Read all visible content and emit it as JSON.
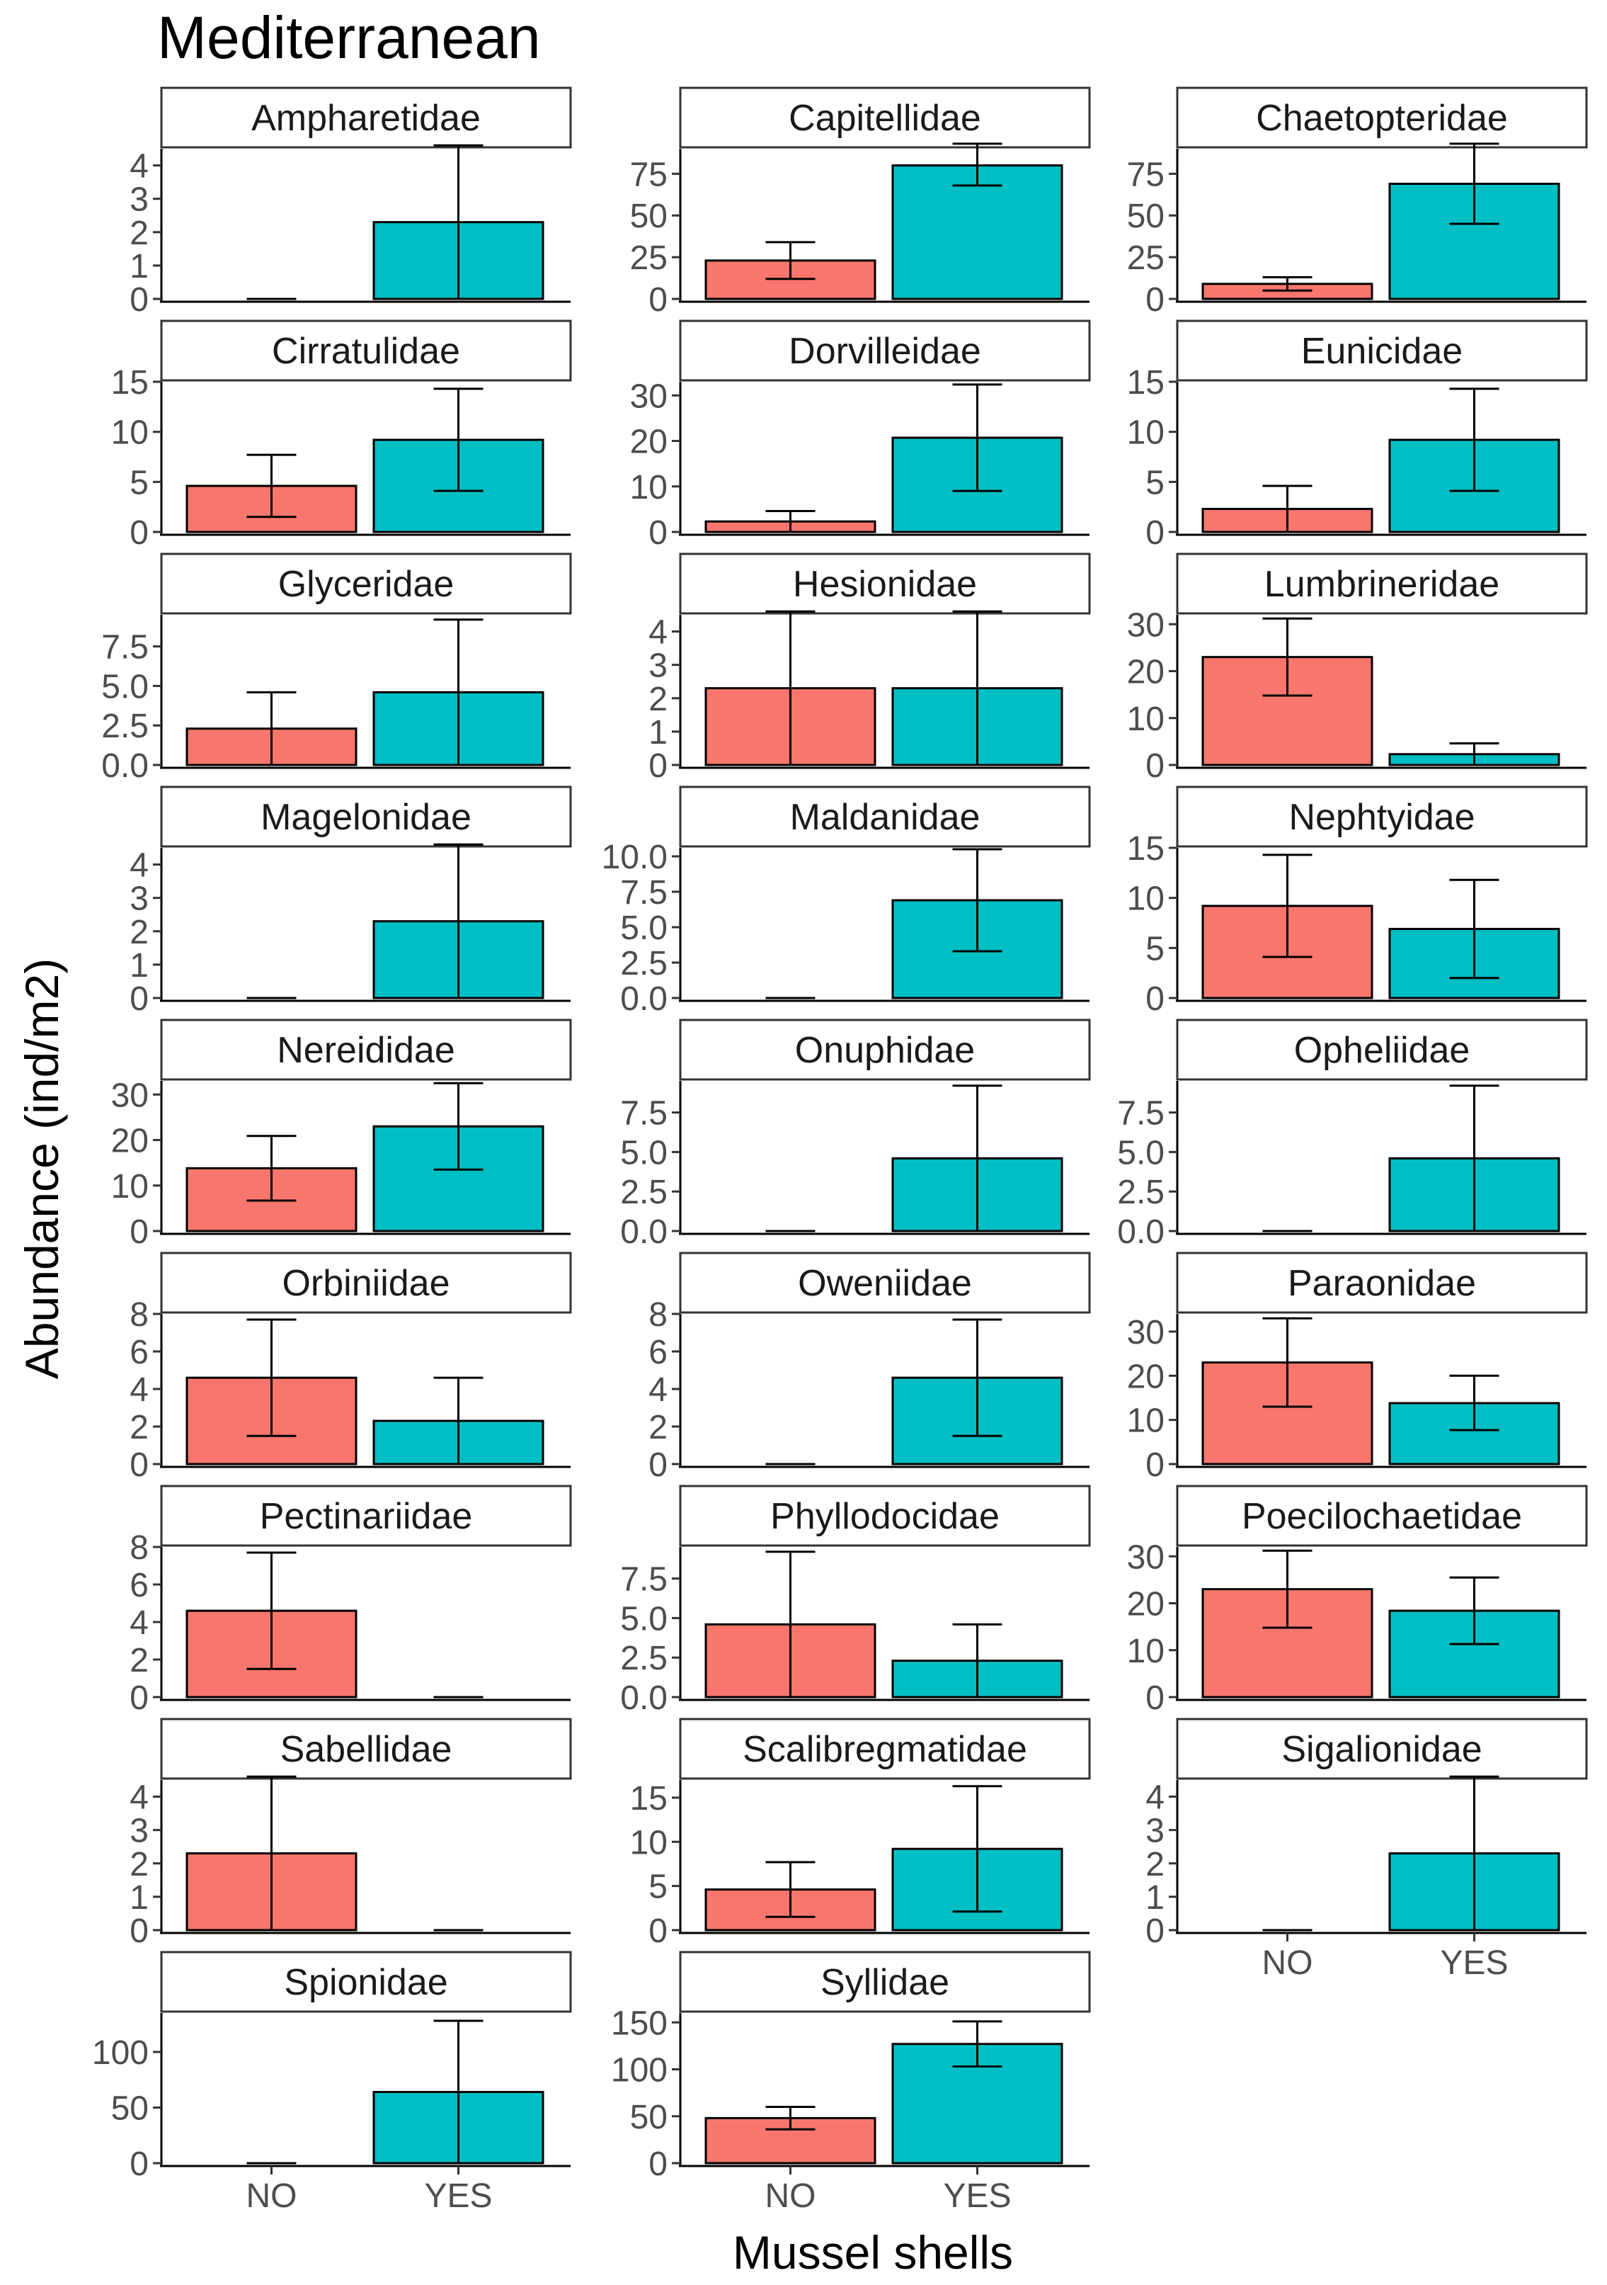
{
  "chart_data": {
    "type": "bar",
    "title": "Mediterranean",
    "xlabel": "Mussel shells",
    "ylabel": "Abundance (ind/m2)",
    "categories": [
      "NO",
      "YES"
    ],
    "colors": {
      "NO": "#F8766D",
      "YES": "#00BFC4"
    },
    "panels": [
      {
        "name": "Ampharetidae",
        "ymax": 4.5,
        "ticks": [
          0,
          1,
          2,
          3,
          4
        ],
        "values": [
          0,
          2.3
        ],
        "lower": [
          0,
          0
        ],
        "upper": [
          0,
          4.6
        ]
      },
      {
        "name": "Capitellidae",
        "ymax": 90,
        "ticks": [
          0,
          25,
          50,
          75
        ],
        "values": [
          23,
          80
        ],
        "lower": [
          12,
          68
        ],
        "upper": [
          34,
          93
        ]
      },
      {
        "name": "Chaetopteridae",
        "ymax": 90,
        "ticks": [
          0,
          25,
          50,
          75
        ],
        "values": [
          9,
          69
        ],
        "lower": [
          5,
          45
        ],
        "upper": [
          13,
          93
        ]
      },
      {
        "name": "Cirratulidae",
        "ymax": 15,
        "ticks": [
          0,
          5,
          10,
          15
        ],
        "values": [
          4.6,
          9.2
        ],
        "lower": [
          1.5,
          4.1
        ],
        "upper": [
          7.7,
          14.3
        ]
      },
      {
        "name": "Dorvilleidae",
        "ymax": 33,
        "ticks": [
          0,
          10,
          20,
          30
        ],
        "values": [
          2.3,
          20.7
        ],
        "lower": [
          0,
          9
        ],
        "upper": [
          4.6,
          32.4
        ]
      },
      {
        "name": "Eunicidae",
        "ymax": 15,
        "ticks": [
          0,
          5,
          10,
          15
        ],
        "values": [
          2.3,
          9.2
        ],
        "lower": [
          0,
          4.1
        ],
        "upper": [
          4.6,
          14.3
        ]
      },
      {
        "name": "Glyceridae",
        "ymax": 9.5,
        "ticks": [
          "0.0",
          "2.5",
          "5.0",
          "7.5"
        ],
        "values": [
          2.3,
          4.6
        ],
        "lower": [
          0,
          0
        ],
        "upper": [
          4.6,
          9.2
        ]
      },
      {
        "name": "Hesionidae",
        "ymax": 4.5,
        "ticks": [
          0,
          1,
          2,
          3,
          4
        ],
        "values": [
          2.3,
          2.3
        ],
        "lower": [
          0,
          0
        ],
        "upper": [
          4.6,
          4.6
        ]
      },
      {
        "name": "Lumbrineridae",
        "ymax": 32,
        "ticks": [
          0,
          10,
          20,
          30
        ],
        "values": [
          23,
          2.3
        ],
        "lower": [
          14.8,
          0
        ],
        "upper": [
          31.2,
          4.6
        ]
      },
      {
        "name": "Magelonidae",
        "ymax": 4.5,
        "ticks": [
          0,
          1,
          2,
          3,
          4
        ],
        "values": [
          0,
          2.3
        ],
        "lower": [
          0,
          0
        ],
        "upper": [
          0,
          4.6
        ]
      },
      {
        "name": "Maldanidae",
        "ymax": 10.6,
        "ticks": [
          "0.0",
          "2.5",
          "5.0",
          "7.5",
          "10.0"
        ],
        "values": [
          0,
          6.9
        ],
        "lower": [
          0,
          3.3
        ],
        "upper": [
          0,
          10.5
        ]
      },
      {
        "name": "Nephtyidae",
        "ymax": 15,
        "ticks": [
          0,
          5,
          10,
          15
        ],
        "values": [
          9.2,
          6.9
        ],
        "lower": [
          4.1,
          2
        ],
        "upper": [
          14.3,
          11.8
        ]
      },
      {
        "name": "Nereididae",
        "ymax": 33,
        "ticks": [
          0,
          10,
          20,
          30
        ],
        "values": [
          13.8,
          23
        ],
        "lower": [
          6.7,
          13.5
        ],
        "upper": [
          20.9,
          32.5
        ]
      },
      {
        "name": "Onuphidae",
        "ymax": 9.5,
        "ticks": [
          "0.0",
          "2.5",
          "5.0",
          "7.5"
        ],
        "values": [
          0,
          4.6
        ],
        "lower": [
          0,
          0
        ],
        "upper": [
          0,
          9.2
        ]
      },
      {
        "name": "Opheliidae",
        "ymax": 9.5,
        "ticks": [
          "0.0",
          "2.5",
          "5.0",
          "7.5"
        ],
        "values": [
          0,
          4.6
        ],
        "lower": [
          0,
          0
        ],
        "upper": [
          0,
          9.2
        ]
      },
      {
        "name": "Orbiniidae",
        "ymax": 8,
        "ticks": [
          0,
          2,
          4,
          6,
          8
        ],
        "values": [
          4.6,
          2.3
        ],
        "lower": [
          1.5,
          0
        ],
        "upper": [
          7.7,
          4.6
        ]
      },
      {
        "name": "Oweniidae",
        "ymax": 8,
        "ticks": [
          0,
          2,
          4,
          6,
          8
        ],
        "values": [
          0,
          4.6
        ],
        "lower": [
          0,
          1.5
        ],
        "upper": [
          0,
          7.7
        ]
      },
      {
        "name": "Paraonidae",
        "ymax": 34,
        "ticks": [
          0,
          10,
          20,
          30
        ],
        "values": [
          23,
          13.8
        ],
        "lower": [
          13,
          7.7
        ],
        "upper": [
          33,
          20
        ]
      },
      {
        "name": "Pectinariidae",
        "ymax": 8,
        "ticks": [
          0,
          2,
          4,
          6,
          8
        ],
        "values": [
          4.6,
          0
        ],
        "lower": [
          1.5,
          0
        ],
        "upper": [
          7.7,
          0
        ]
      },
      {
        "name": "Phyllodocidae",
        "ymax": 9.5,
        "ticks": [
          "0.0",
          "2.5",
          "5.0",
          "7.5"
        ],
        "values": [
          4.6,
          2.3
        ],
        "lower": [
          0,
          0
        ],
        "upper": [
          9.2,
          4.6
        ]
      },
      {
        "name": "Poecilochaetidae",
        "ymax": 32,
        "ticks": [
          0,
          10,
          20,
          30
        ],
        "values": [
          23,
          18.4
        ],
        "lower": [
          14.8,
          11.3
        ],
        "upper": [
          31.2,
          25.5
        ]
      },
      {
        "name": "Sabellidae",
        "ymax": 4.5,
        "ticks": [
          0,
          1,
          2,
          3,
          4
        ],
        "values": [
          2.3,
          0
        ],
        "lower": [
          0,
          0
        ],
        "upper": [
          4.6,
          0
        ]
      },
      {
        "name": "Scalibregmatidae",
        "ymax": 17,
        "ticks": [
          0,
          5,
          10,
          15
        ],
        "values": [
          4.6,
          9.2
        ],
        "lower": [
          1.5,
          2.1
        ],
        "upper": [
          7.7,
          16.3
        ]
      },
      {
        "name": "Sigalionidae",
        "ymax": 4.5,
        "ticks": [
          0,
          1,
          2,
          3,
          4
        ],
        "values": [
          0,
          2.3
        ],
        "lower": [
          0,
          0
        ],
        "upper": [
          0,
          4.6
        ]
      },
      {
        "name": "Spionidae",
        "ymax": 135,
        "ticks": [
          0,
          50,
          100
        ],
        "values": [
          0,
          64
        ],
        "lower": [
          0,
          0
        ],
        "upper": [
          0,
          128
        ]
      },
      {
        "name": "Syllidae",
        "ymax": 160,
        "ticks": [
          0,
          50,
          100,
          150
        ],
        "values": [
          48,
          127
        ],
        "lower": [
          36,
          103
        ],
        "upper": [
          60,
          151
        ]
      }
    ]
  }
}
